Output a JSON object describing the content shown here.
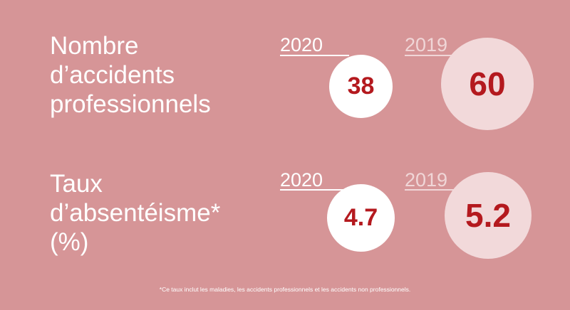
{
  "colors": {
    "background": "#d69597",
    "circle_2020": "#ffffff",
    "circle_2019": "#f2d9da",
    "value_text": "#b4191e"
  },
  "footnote": "*Ce taux inclut les maladies, les accidents professionnels et les accidents non professionnels.",
  "chart_data": [
    {
      "type": "bubble",
      "label_lines": [
        "Nombre",
        "d’accidents",
        "professionnels"
      ],
      "series": [
        {
          "name": "2020",
          "value": 38,
          "display": "38"
        },
        {
          "name": "2019",
          "value": 60,
          "display": "60"
        }
      ]
    },
    {
      "type": "bubble",
      "label_lines": [
        "Taux",
        "d’absentéisme*",
        "(%)"
      ],
      "series": [
        {
          "name": "2020",
          "value": 4.7,
          "display": "4.7"
        },
        {
          "name": "2019",
          "value": 5.2,
          "display": "5.2"
        }
      ]
    }
  ]
}
